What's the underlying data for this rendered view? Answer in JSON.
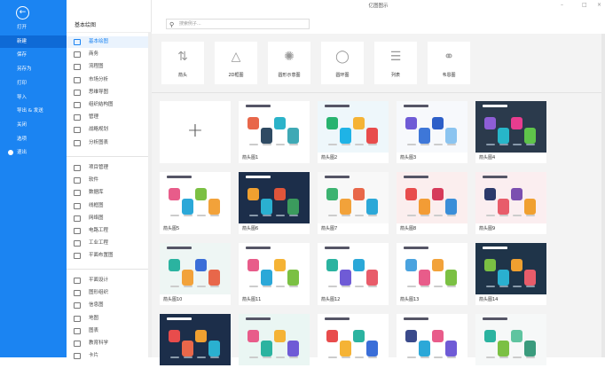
{
  "window": {
    "title": "亿图图示",
    "minimize": "–",
    "maximize": "□",
    "close": "×"
  },
  "nav": {
    "back_icon": "arrow-left-icon",
    "items": [
      "打开",
      "新建",
      "保存",
      "另存为",
      "打印",
      "导入",
      "导出 & 发送",
      "关闭",
      "选项",
      "退出"
    ],
    "selected": "新建",
    "accent": "#1b84f2"
  },
  "categories": {
    "header": "基本绘图",
    "selected": "基本绘图",
    "groups": [
      [
        "基本绘图",
        "商务",
        "流程图",
        "市场分析",
        "思维导图",
        "组织结构图",
        "管理",
        "战略规划",
        "分析图表"
      ],
      [
        "项目管理",
        "软件",
        "数据库",
        "线框图",
        "网络图",
        "电路工程",
        "工业工程",
        "平面布置图"
      ],
      [
        "平面设计",
        "图形组织",
        "信息图",
        "地图",
        "图表",
        "教育科学",
        "卡片"
      ]
    ]
  },
  "search": {
    "placeholder": "搜索例子..."
  },
  "subcategories": [
    {
      "label": "箭头",
      "icon": "arrows-icon"
    },
    {
      "label": "2D框图",
      "icon": "shapes-icon"
    },
    {
      "label": "圆形示意图",
      "icon": "radial-icon"
    },
    {
      "label": "圆环图",
      "icon": "ring-icon"
    },
    {
      "label": "列表",
      "icon": "list-icon"
    },
    {
      "label": "韦恩图",
      "icon": "venn-icon"
    }
  ],
  "templates": [
    {
      "label": "",
      "blank": true
    },
    {
      "label": "箭头图1",
      "bg": "#ffffff",
      "colors": [
        "#e8674a",
        "#2f4a63",
        "#2bb3c9",
        "#3fa9b5"
      ]
    },
    {
      "label": "箭头图2",
      "bg": "#eef7fb",
      "colors": [
        "#27b36f",
        "#1fb3e6",
        "#f5b335",
        "#e84c4c"
      ]
    },
    {
      "label": "箭头图3",
      "bg": "#f7f9fc",
      "colors": [
        "#6f5bd6",
        "#3e77d8",
        "#2d5fc8",
        "#8bc4f0"
      ]
    },
    {
      "label": "箭头图4",
      "bg": "#2b3a4c",
      "colors": [
        "#8e5ed6",
        "#27b6c9",
        "#e83d8f",
        "#5fc44a"
      ]
    },
    {
      "label": "箭头图5",
      "bg": "#ffffff",
      "colors": [
        "#e85c8a",
        "#2ba8d8",
        "#7bc043",
        "#f2a23a"
      ]
    },
    {
      "label": "箭头图6",
      "bg": "#1c2e4a",
      "colors": [
        "#f0a030",
        "#2ab0d0",
        "#e0553a",
        "#3b9b5d"
      ]
    },
    {
      "label": "箭头图7",
      "bg": "#f8f8f8",
      "colors": [
        "#3cb371",
        "#f2a23a",
        "#e8674a",
        "#2ba8d8"
      ]
    },
    {
      "label": "箭头图8",
      "bg": "#fbeeee",
      "colors": [
        "#e84c4c",
        "#f39c35",
        "#d63a5a",
        "#3a8ed8"
      ]
    },
    {
      "label": "箭头图9",
      "bg": "#fbeef0",
      "colors": [
        "#2b3a6b",
        "#e85c6a",
        "#7b4fb0",
        "#f0a030"
      ]
    },
    {
      "label": "箭头图10",
      "bg": "#eef6f4",
      "colors": [
        "#2bb3a0",
        "#f2a23a",
        "#3a6ed8",
        "#e8674a"
      ]
    },
    {
      "label": "箭头图11",
      "bg": "#ffffff",
      "colors": [
        "#e85c8a",
        "#2ba8d8",
        "#f5b335",
        "#7bc043"
      ]
    },
    {
      "label": "箭头图12",
      "bg": "#ffffff",
      "colors": [
        "#2bb3a0",
        "#6f5bd6",
        "#2ba8d8",
        "#e85c6a"
      ]
    },
    {
      "label": "箭头图13",
      "bg": "#ffffff",
      "colors": [
        "#4aa3df",
        "#e85c8a",
        "#f2a23a",
        "#7bc043"
      ]
    },
    {
      "label": "箭头图14",
      "bg": "#1f3449",
      "colors": [
        "#7bc043",
        "#2ab0d0",
        "#f0a030",
        "#e85c6a"
      ]
    },
    {
      "label": "",
      "bg": "#1c2e4a",
      "colors": [
        "#e84c4c",
        "#e8674a",
        "#f0a030",
        "#2ab0d0"
      ]
    },
    {
      "label": "",
      "bg": "#eaf6f3",
      "colors": [
        "#e85c8a",
        "#2bb3a0",
        "#f5b335",
        "#6f5bd6"
      ]
    },
    {
      "label": "",
      "bg": "#ffffff",
      "colors": [
        "#e84c4c",
        "#f5b335",
        "#2bb3a0",
        "#3a6ed8"
      ]
    },
    {
      "label": "",
      "bg": "#ffffff",
      "colors": [
        "#3a4a8b",
        "#2ba8d8",
        "#e85c8a",
        "#6f5bd6"
      ]
    },
    {
      "label": "",
      "bg": "#f6f8f8",
      "colors": [
        "#2bb3a0",
        "#7bc043",
        "#5fc4a0",
        "#3a9b7d"
      ]
    }
  ]
}
